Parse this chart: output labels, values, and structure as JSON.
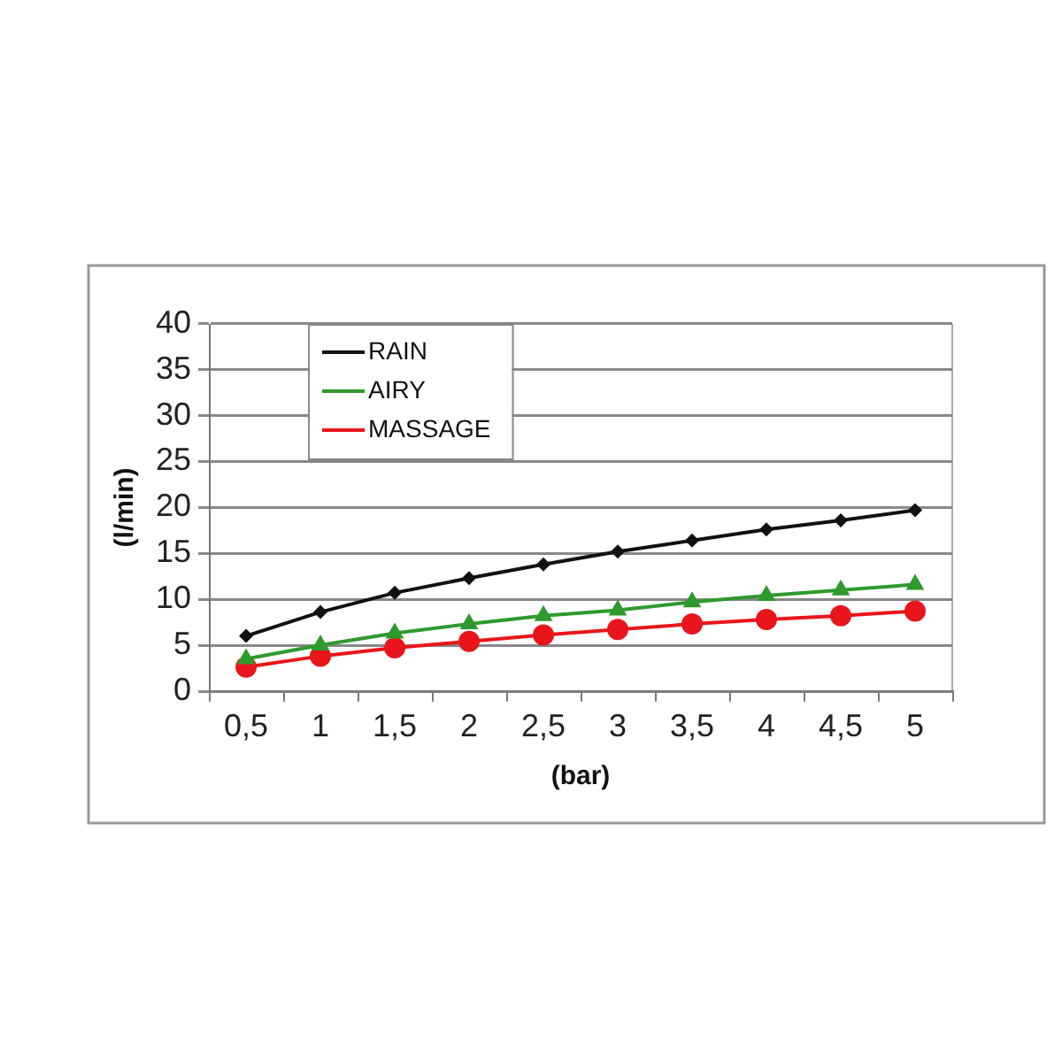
{
  "chart_data": {
    "type": "line",
    "xlabel": "(bar)",
    "ylabel": "(l/min)",
    "categories": [
      "0,5",
      "1",
      "1,5",
      "2",
      "2,5",
      "3",
      "3,5",
      "4",
      "4,5",
      "5"
    ],
    "series": [
      {
        "name": "RAIN",
        "color": "#111111",
        "marker": "diamond",
        "values": [
          6.0,
          8.6,
          10.7,
          12.3,
          13.8,
          15.2,
          16.4,
          17.6,
          18.6,
          19.7
        ]
      },
      {
        "name": "AIRY",
        "color": "#2e9a2e",
        "marker": "triangle",
        "values": [
          3.5,
          5.0,
          6.3,
          7.3,
          8.2,
          8.8,
          9.7,
          10.4,
          11.0,
          11.6
        ]
      },
      {
        "name": "MASSAGE",
        "color": "#e8161b",
        "marker": "circle",
        "values": [
          2.6,
          3.8,
          4.7,
          5.4,
          6.1,
          6.7,
          7.3,
          7.8,
          8.2,
          8.7
        ]
      }
    ],
    "ylim": [
      0,
      40
    ],
    "yticks": [
      0,
      5,
      10,
      15,
      20,
      25,
      30,
      35,
      40
    ],
    "grid": "y",
    "legend": "top left",
    "line_style": "solid"
  }
}
